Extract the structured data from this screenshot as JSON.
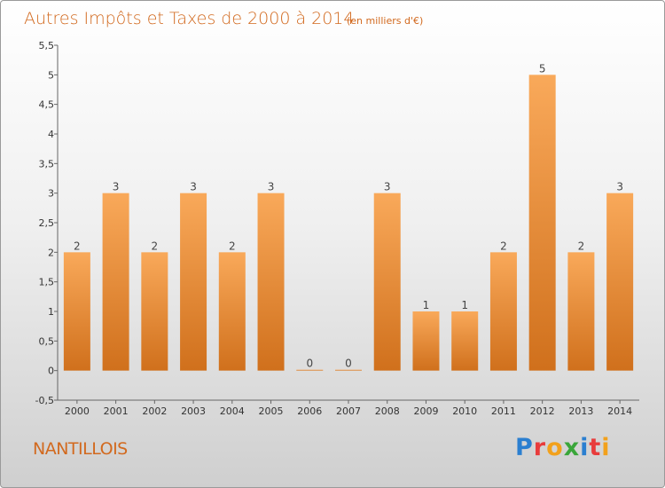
{
  "chart_data": {
    "type": "bar",
    "title": "Autres Impôts et Taxes de 2000 à 2014",
    "subtitle": "(en milliers d'€)",
    "categories": [
      "2000",
      "2001",
      "2002",
      "2003",
      "2004",
      "2005",
      "2006",
      "2007",
      "2008",
      "2009",
      "2010",
      "2011",
      "2012",
      "2013",
      "2014"
    ],
    "values": [
      2,
      3,
      2,
      3,
      2,
      3,
      0,
      0,
      3,
      1,
      1,
      2,
      5,
      2,
      3
    ],
    "ylim": [
      -0.5,
      5.5
    ],
    "yticks": [
      "-0,5",
      "0",
      "0,5",
      "1",
      "1,5",
      "2",
      "2,5",
      "3",
      "3,5",
      "4",
      "4,5",
      "5",
      "5,5"
    ],
    "grid": false,
    "bar_colors": {
      "top": "#f9a95a",
      "bottom": "#d0701c"
    }
  },
  "commune": "NANTILLOIS",
  "logo": {
    "text": "Proxiti"
  }
}
